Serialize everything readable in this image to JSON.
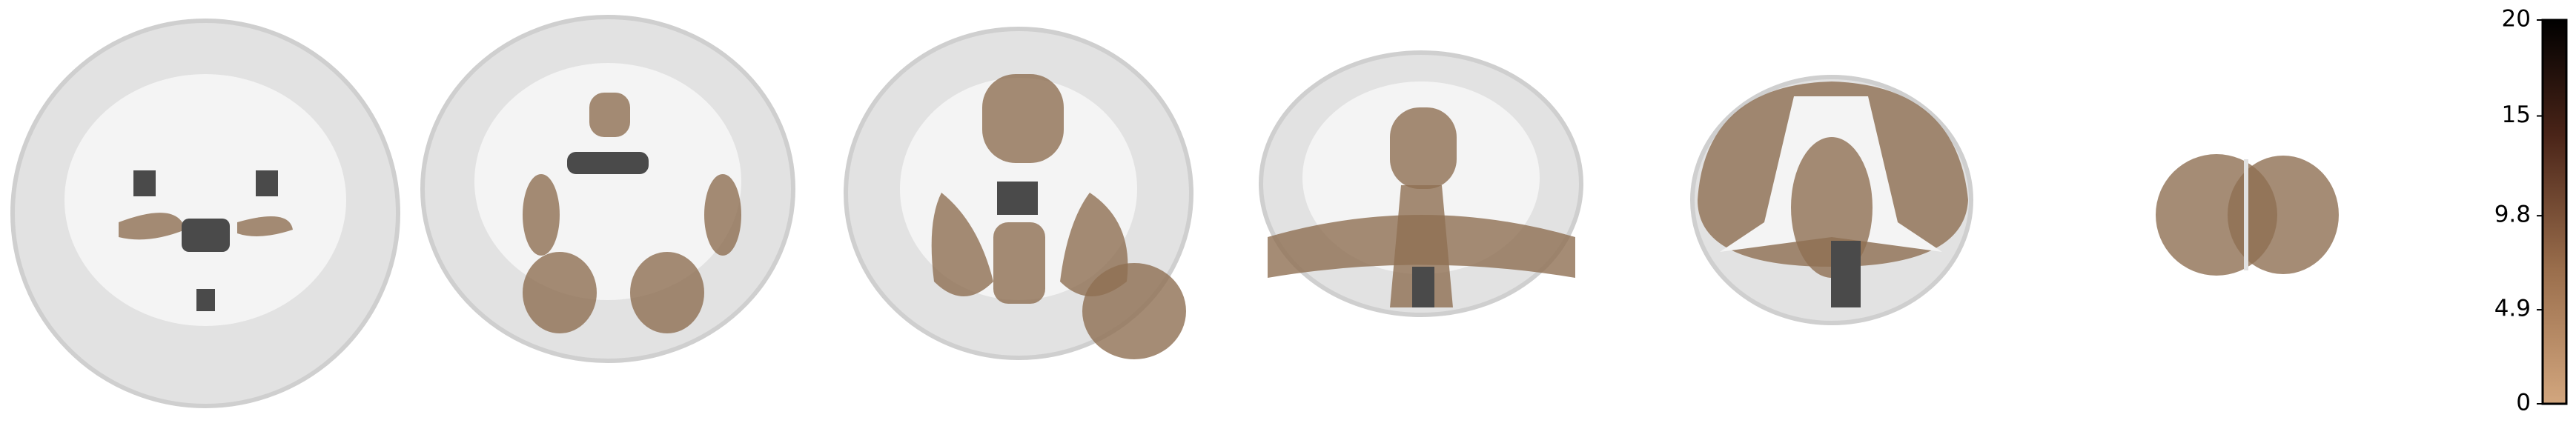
{
  "colorbar": {
    "lim": [
      0,
      20
    ],
    "ticks": [
      0,
      4.9,
      9.8,
      15,
      20
    ]
  }
}
